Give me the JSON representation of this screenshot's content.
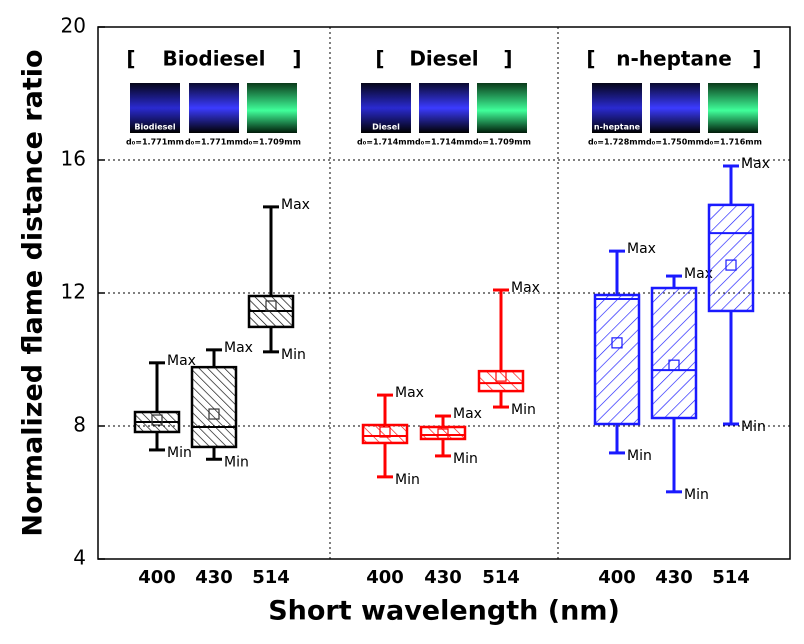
{
  "chart_data": {
    "type": "box",
    "xlabel": "Short wavelength (nm)",
    "ylabel": "Normalized flame distance ratio",
    "ylim": [
      4,
      20
    ],
    "yticks": [
      4,
      8,
      12,
      16,
      20
    ],
    "grid": true,
    "max_label": "Max",
    "min_label": "Min",
    "bracket_open": "[",
    "bracket_close": "]",
    "groups": [
      {
        "name": "Biodiesel",
        "color": "#000000",
        "hatch": "forward",
        "image_label": "Biodiesel",
        "categories": [
          "400",
          "430",
          "514"
        ],
        "diameters": [
          "d₀=1.771mm",
          "d₀=1.771mm",
          "d₀=1.709mm"
        ],
        "boxes": [
          {
            "min": 7.28,
            "q1": 7.82,
            "median": 8.12,
            "q3": 8.42,
            "max": 9.9,
            "mean": 8.18
          },
          {
            "min": 7.0,
            "q1": 7.37,
            "median": 7.97,
            "q3": 9.77,
            "max": 10.29,
            "mean": 8.36
          },
          {
            "min": 10.23,
            "q1": 10.98,
            "median": 11.46,
            "q3": 11.91,
            "max": 14.59,
            "mean": 11.61
          }
        ]
      },
      {
        "name": "Diesel",
        "color": "#ff0000",
        "hatch": "forward",
        "image_label": "Diesel",
        "categories": [
          "400",
          "430",
          "514"
        ],
        "diameters": [
          "d₀=1.714mm",
          "d₀=1.714mm",
          "d₀=1.709mm"
        ],
        "boxes": [
          {
            "min": 6.47,
            "q1": 7.49,
            "median": 7.7,
            "q3": 8.03,
            "max": 8.93,
            "mean": 7.82
          },
          {
            "min": 7.1,
            "q1": 7.61,
            "median": 7.73,
            "q3": 7.97,
            "max": 8.3,
            "mean": 7.76
          },
          {
            "min": 8.57,
            "q1": 9.05,
            "median": 9.29,
            "q3": 9.65,
            "max": 12.09,
            "mean": 9.5
          }
        ]
      },
      {
        "name": "n-heptane",
        "color": "#1a1aff",
        "hatch": "backward",
        "image_label": "n-heptane",
        "categories": [
          "400",
          "430",
          "514"
        ],
        "diameters": [
          "d₀=1.728mm",
          "d₀=1.750mm",
          "d₀=1.716mm"
        ],
        "boxes": [
          {
            "min": 7.19,
            "q1": 8.06,
            "median": 11.82,
            "q3": 11.94,
            "max": 13.26,
            "mean": 10.5
          },
          {
            "min": 6.02,
            "q1": 8.24,
            "median": 9.68,
            "q3": 12.15,
            "max": 12.51,
            "mean": 9.83
          },
          {
            "min": 8.06,
            "q1": 11.46,
            "median": 13.8,
            "q3": 14.65,
            "max": 15.82,
            "mean": 12.84
          }
        ]
      }
    ]
  }
}
